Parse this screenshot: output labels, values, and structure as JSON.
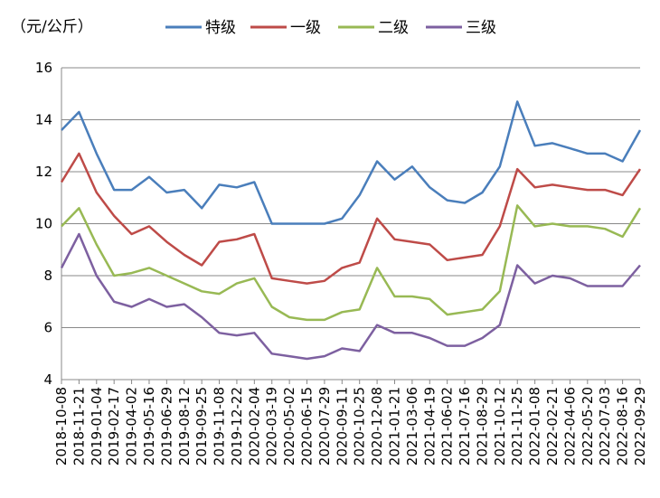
{
  "unit_label": "（元/公斤）",
  "chart_data": {
    "type": "line",
    "ylim": [
      4,
      16
    ],
    "y_ticks": [
      "4",
      "6",
      "8",
      "10",
      "12",
      "14",
      "16"
    ],
    "grid": "horizontal",
    "legend_position": "top",
    "x_tick_labels": [
      "2018-10-08",
      "2018-11-21",
      "2019-01-04",
      "2019-02-17",
      "2019-04-02",
      "2019-05-16",
      "2019-06-29",
      "2019-08-12",
      "2019-09-25",
      "2019-11-08",
      "2019-12-22",
      "2020-02-04",
      "2020-03-19",
      "2020-05-02",
      "2020-06-15",
      "2020-07-29",
      "2020-09-11",
      "2020-10-25",
      "2020-12-08",
      "2021-01-21",
      "2021-03-06",
      "2021-04-19",
      "2021-06-02",
      "2021-07-16",
      "2021-08-29",
      "2021-10-12",
      "2021-11-25",
      "2022-01-08",
      "2022-02-21",
      "2022-04-06",
      "2022-05-20",
      "2022-07-03",
      "2022-08-16",
      "2022-09-29"
    ],
    "x": [
      "2018-10-08",
      "2018-11-21",
      "2019-01-04",
      "2019-02-17",
      "2019-04-02",
      "2019-05-16",
      "2019-06-29",
      "2019-08-12",
      "2019-09-25",
      "2019-11-08",
      "2019-12-22",
      "2020-02-04",
      "2020-03-19",
      "2020-05-02",
      "2020-06-15",
      "2020-07-29",
      "2020-09-11",
      "2020-10-25",
      "2020-12-08",
      "2021-01-21",
      "2021-03-06",
      "2021-04-19",
      "2021-06-02",
      "2021-07-16",
      "2021-08-29",
      "2021-10-12",
      "2021-11-25",
      "2022-01-08",
      "2022-02-21",
      "2022-04-06",
      "2022-05-20",
      "2022-07-03",
      "2022-08-16",
      "2022-09-29"
    ],
    "series": [
      {
        "name": "特级",
        "color": "#4a7ebb",
        "values": [
          13.6,
          14.3,
          12.7,
          11.3,
          11.3,
          11.8,
          11.2,
          11.3,
          10.6,
          11.5,
          11.4,
          11.6,
          10.0,
          10.0,
          10.0,
          10.0,
          10.2,
          11.1,
          12.4,
          11.7,
          12.2,
          11.4,
          10.9,
          10.8,
          11.2,
          12.2,
          14.7,
          13.0,
          13.1,
          12.9,
          12.7,
          12.7,
          12.4,
          13.6
        ]
      },
      {
        "name": "一级",
        "color": "#be4b48",
        "values": [
          11.6,
          12.7,
          11.2,
          10.3,
          9.6,
          9.9,
          9.3,
          8.8,
          8.4,
          9.3,
          9.4,
          9.6,
          7.9,
          7.8,
          7.7,
          7.8,
          8.3,
          8.5,
          10.2,
          9.4,
          9.3,
          9.2,
          8.6,
          8.7,
          8.8,
          9.9,
          12.1,
          11.4,
          11.5,
          11.4,
          11.3,
          11.3,
          11.1,
          12.1
        ]
      },
      {
        "name": "二级",
        "color": "#98b954",
        "values": [
          9.9,
          10.6,
          9.2,
          8.0,
          8.1,
          8.3,
          8.0,
          7.7,
          7.4,
          7.3,
          7.7,
          7.9,
          6.8,
          6.4,
          6.3,
          6.3,
          6.6,
          6.7,
          8.3,
          7.2,
          7.2,
          7.1,
          6.5,
          6.6,
          6.7,
          7.4,
          10.7,
          9.9,
          10.0,
          9.9,
          9.9,
          9.8,
          9.5,
          10.6
        ]
      },
      {
        "name": "三级",
        "color": "#7d60a0",
        "values": [
          8.3,
          9.6,
          8.0,
          7.0,
          6.8,
          7.1,
          6.8,
          6.9,
          6.4,
          5.8,
          5.7,
          5.8,
          5.0,
          4.9,
          4.8,
          4.9,
          5.2,
          5.1,
          6.1,
          5.8,
          5.8,
          5.6,
          5.3,
          5.3,
          5.6,
          6.1,
          8.4,
          7.7,
          8.0,
          7.9,
          7.6,
          7.6,
          7.6,
          8.4
        ]
      }
    ]
  }
}
